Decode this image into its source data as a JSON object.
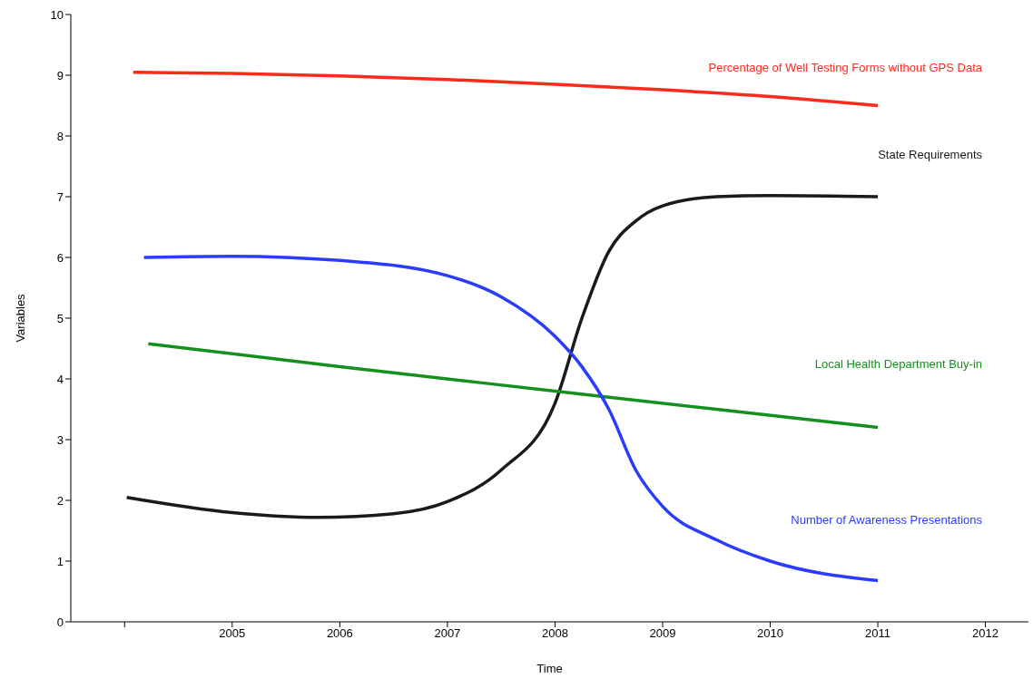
{
  "chart_data": {
    "type": "line",
    "xlabel": "Time",
    "ylabel": "Variables",
    "xlim": [
      2003.5,
      2012.4
    ],
    "xticks": [
      {
        "value": 2004,
        "label": null
      },
      2005,
      2006,
      2007,
      2008,
      2009,
      2010,
      2011,
      2012
    ],
    "ylim": [
      0,
      10
    ],
    "yticks": [
      0,
      1,
      2,
      3,
      4,
      5,
      6,
      7,
      8,
      9,
      10
    ],
    "grid": false,
    "legend": false,
    "marker": "none",
    "line_style": "solid",
    "series": [
      {
        "name": "Percentage of Well Testing Forms without GPS Data",
        "color": "#ff2a1a",
        "x": [
          2004.08,
          2005,
          2006,
          2007,
          2008,
          2009,
          2010,
          2011
        ],
        "values": [
          9.05,
          9.03,
          8.99,
          8.93,
          8.85,
          8.76,
          8.65,
          8.5
        ]
      },
      {
        "name": "State Requirements",
        "color": "#1a1a1a",
        "x": [
          2004.02,
          2005,
          2005.8,
          2006.5,
          2007,
          2007.5,
          2008,
          2008.25,
          2008.5,
          2008.75,
          2009,
          2009.5,
          2010,
          2011
        ],
        "values": [
          2.05,
          1.8,
          1.72,
          1.78,
          1.98,
          2.5,
          3.6,
          5.0,
          6.1,
          6.6,
          6.85,
          7.0,
          7.02,
          7.0
        ]
      },
      {
        "name": "Local Health Department Buy-in",
        "color": "#14901e",
        "x": [
          2004.22,
          2006,
          2008,
          2011
        ],
        "values": [
          4.58,
          4.2,
          3.8,
          3.2
        ]
      },
      {
        "name": "Number of Awareness Presentations",
        "color": "#2a3cff",
        "x": [
          2004.18,
          2005,
          2006,
          2007,
          2007.5,
          2008,
          2008.25,
          2008.5,
          2008.75,
          2009,
          2009.5,
          2010,
          2011
        ],
        "values": [
          6.0,
          6.02,
          5.95,
          5.7,
          5.35,
          4.7,
          4.2,
          3.5,
          2.5,
          1.9,
          1.35,
          1.0,
          0.68
        ]
      }
    ]
  }
}
